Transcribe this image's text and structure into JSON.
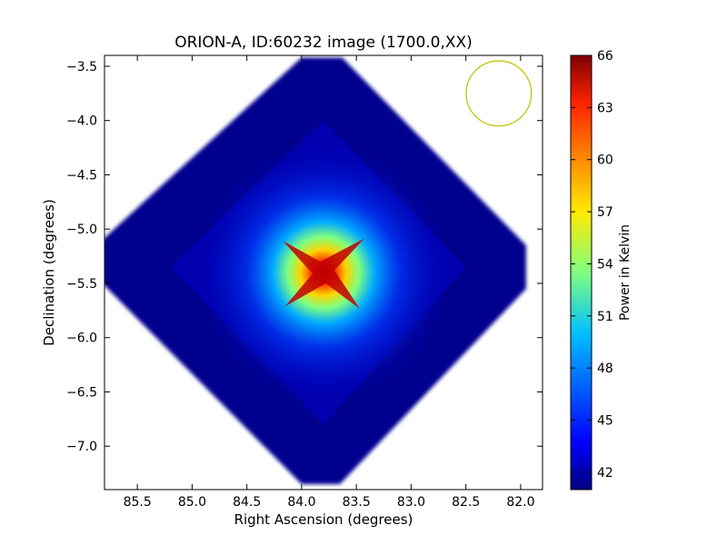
{
  "chart_data": {
    "type": "heatmap",
    "title": "ORION-A, ID:60232 image (1700.0,XX)",
    "xlabel": "Right Ascension (degrees)",
    "ylabel": "Declination (degrees)",
    "xlim": [
      85.8,
      81.8
    ],
    "ylim": [
      -7.4,
      -3.4
    ],
    "x_ticks": [
      "85.5",
      "85.0",
      "84.5",
      "84.0",
      "83.5",
      "83.0",
      "82.5",
      "82.0"
    ],
    "y_ticks": [
      "−3.5",
      "−4.0",
      "−4.5",
      "−5.0",
      "−5.5",
      "−6.0",
      "−6.5",
      "−7.0"
    ],
    "colorbar": {
      "label": "Power in Kelvin",
      "range": [
        41,
        66
      ],
      "ticks": [
        "42",
        "45",
        "48",
        "51",
        "54",
        "57",
        "60",
        "63",
        "66"
      ],
      "colormap": "jet"
    },
    "peak": {
      "ra": 83.8,
      "dec": -5.4,
      "value": 66
    },
    "background_value": 42,
    "coverage_shape": "diamond",
    "beam": {
      "ra": 82.2,
      "dec": -3.75,
      "radius_deg": 0.3,
      "color": "#bfbf00"
    },
    "grid": false,
    "legend": "none"
  }
}
